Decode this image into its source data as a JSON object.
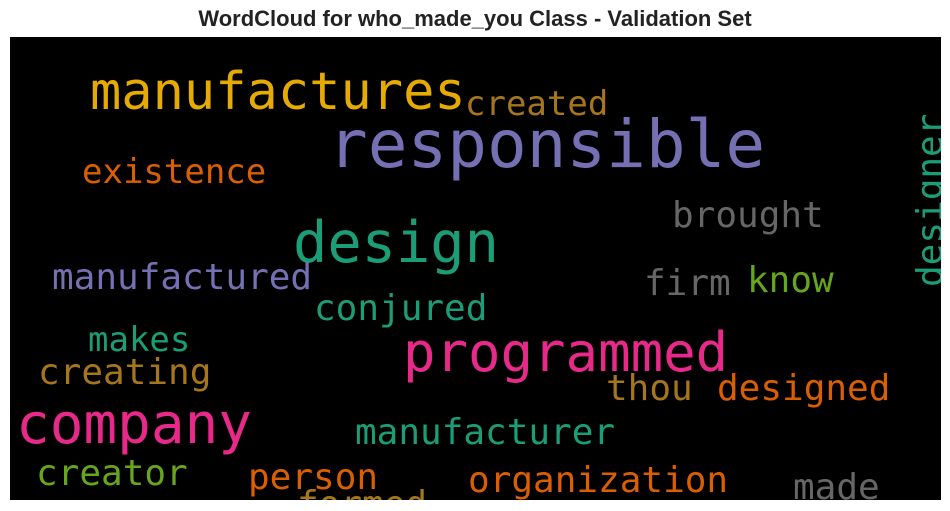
{
  "chart_data": {
    "type": "wordcloud",
    "title": "WordCloud for who_made_you Class - Validation Set",
    "background": "#000000",
    "words": [
      {
        "text": "responsible",
        "color": "#7570b3",
        "weight": 1.0
      },
      {
        "text": "manufactures",
        "color": "#e6ab02",
        "weight": 0.78
      },
      {
        "text": "company",
        "color": "#e7298a",
        "weight": 0.83
      },
      {
        "text": "programmed",
        "color": "#e7298a",
        "weight": 0.82
      },
      {
        "text": "design",
        "color": "#1b9e77",
        "weight": 0.86
      },
      {
        "text": "created",
        "color": "#a6761d",
        "weight": 0.5
      },
      {
        "text": "existence",
        "color": "#d95f02",
        "weight": 0.5
      },
      {
        "text": "brought",
        "color": "#666666",
        "weight": 0.55
      },
      {
        "text": "designer",
        "color": "#1b9e77",
        "weight": 0.56
      },
      {
        "text": "manufactured",
        "color": "#7570b3",
        "weight": 0.55
      },
      {
        "text": "firm",
        "color": "#666666",
        "weight": 0.55
      },
      {
        "text": "know",
        "color": "#66a61e",
        "weight": 0.55
      },
      {
        "text": "conjured",
        "color": "#1b9e77",
        "weight": 0.55
      },
      {
        "text": "makes",
        "color": "#1b9e77",
        "weight": 0.53
      },
      {
        "text": "creating",
        "color": "#a6761d",
        "weight": 0.55
      },
      {
        "text": "thou",
        "color": "#a6761d",
        "weight": 0.55
      },
      {
        "text": "designed",
        "color": "#d95f02",
        "weight": 0.55
      },
      {
        "text": "manufacturer",
        "color": "#1b9e77",
        "weight": 0.55
      },
      {
        "text": "creator",
        "color": "#66a61e",
        "weight": 0.55
      },
      {
        "text": "person",
        "color": "#d95f02",
        "weight": 0.55
      },
      {
        "text": "organization",
        "color": "#d95f02",
        "weight": 0.55
      },
      {
        "text": "made",
        "color": "#666666",
        "weight": 0.55
      },
      {
        "text": "formed",
        "color": "#a6761d",
        "weight": 0.55
      }
    ]
  }
}
